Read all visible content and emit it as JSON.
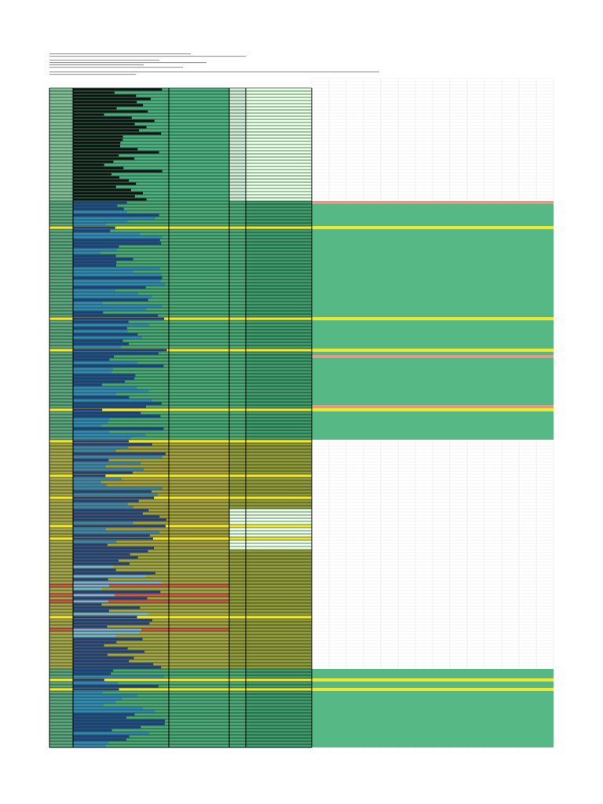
{
  "sheet": {}
}
